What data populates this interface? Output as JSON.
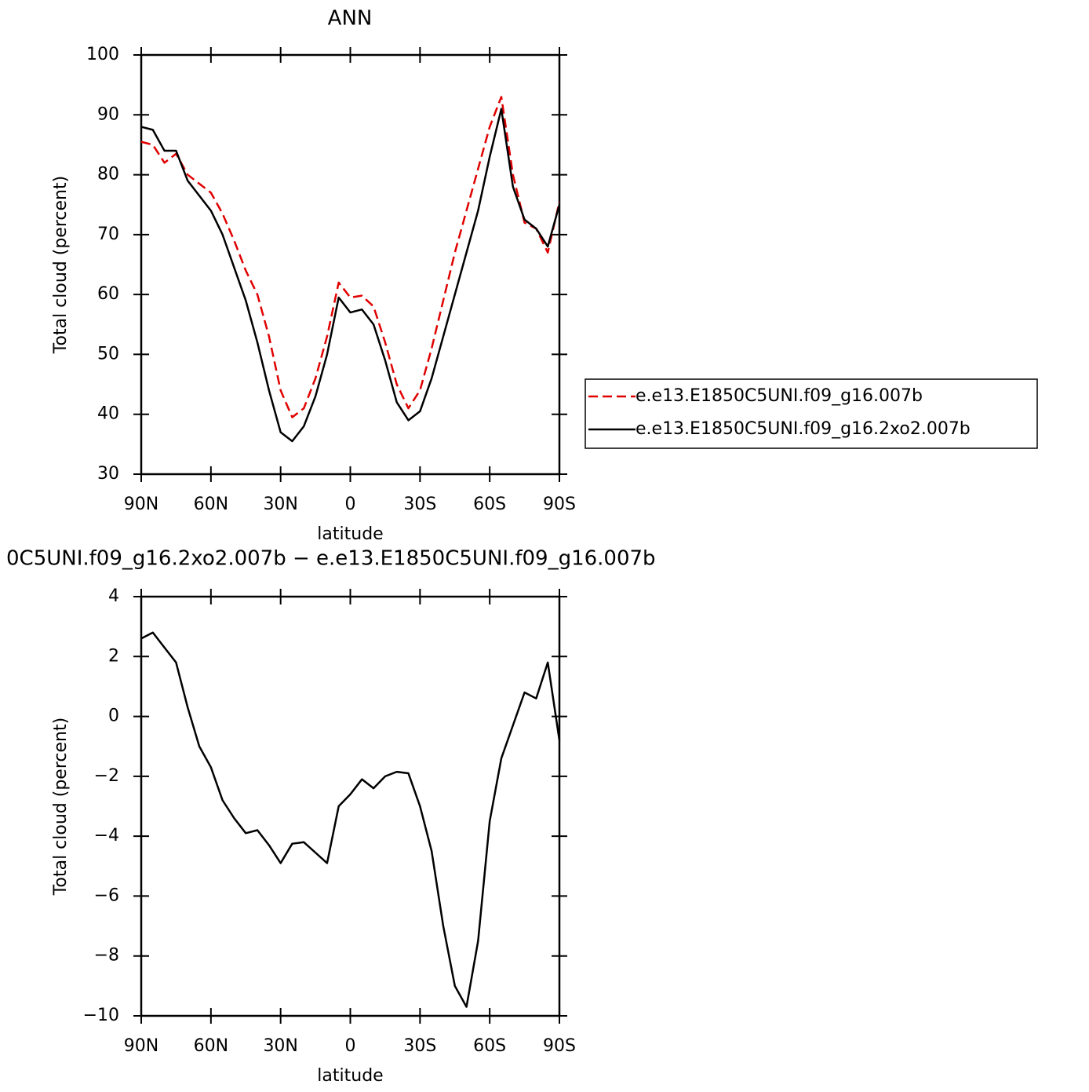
{
  "chart_data": [
    {
      "type": "line",
      "title": "ANN",
      "xlabel": "latitude",
      "ylabel": "Total cloud (percent)",
      "x": [
        90,
        85,
        80,
        75,
        70,
        65,
        60,
        55,
        50,
        45,
        40,
        35,
        30,
        25,
        20,
        15,
        10,
        5,
        0,
        -5,
        -10,
        -15,
        -20,
        -25,
        -30,
        -35,
        -40,
        -45,
        -50,
        -55,
        -60,
        -65,
        -70,
        -75,
        -80,
        -85,
        -90
      ],
      "series": [
        {
          "name": "e.e13.E1850C5UNI.f09_g16.007b",
          "color": "#e00000",
          "dashed": true,
          "values": [
            85.5,
            85,
            82,
            83.5,
            80,
            78.5,
            77,
            73.5,
            69,
            64,
            60,
            53,
            44,
            39.5,
            41,
            46,
            53,
            62,
            59.5,
            59.8,
            58,
            52,
            45,
            41,
            44,
            51,
            59,
            67,
            74,
            81,
            88,
            93,
            80,
            72,
            71,
            67,
            75.5
          ]
        },
        {
          "name": "e.e13.E1850C5UNI.f09_g16.2xo2.007b",
          "color": "#000000",
          "dashed": false,
          "values": [
            88,
            87.5,
            84,
            84,
            79,
            76.5,
            74,
            70,
            64.5,
            59,
            52,
            44,
            37,
            35.5,
            38,
            43,
            50,
            59.5,
            57,
            57.5,
            55,
            49,
            42,
            39,
            40.5,
            46,
            53,
            60,
            67,
            74,
            83,
            91,
            78,
            72.5,
            71,
            68,
            75
          ]
        }
      ],
      "xlim": [
        90,
        -90
      ],
      "xticks": [
        {
          "value": 90,
          "label": "90N"
        },
        {
          "value": 60,
          "label": "60N"
        },
        {
          "value": 30,
          "label": "30N"
        },
        0,
        {
          "value": -30,
          "label": "30S"
        },
        {
          "value": -60,
          "label": "60S"
        },
        {
          "value": -90,
          "label": "90S"
        }
      ],
      "ylim": [
        30,
        100
      ],
      "yticks": [
        30,
        40,
        50,
        60,
        70,
        80,
        90,
        100
      ],
      "legend": "right"
    },
    {
      "type": "line",
      "title": "0C5UNI.f09_g16.2xo2.007b − e.e13.E1850C5UNI.f09_g16.007b",
      "xlabel": "latitude",
      "ylabel": "Total cloud (percent)",
      "x": [
        90,
        85,
        80,
        75,
        70,
        65,
        60,
        55,
        50,
        45,
        40,
        35,
        30,
        25,
        20,
        15,
        10,
        5,
        0,
        -5,
        -10,
        -15,
        -20,
        -25,
        -30,
        -35,
        -40,
        -45,
        -50,
        -55,
        -60,
        -65,
        -70,
        -75,
        -80,
        -85,
        -90
      ],
      "series": [
        {
          "color": "#000000",
          "dashed": false,
          "values": [
            2.6,
            2.8,
            2.3,
            1.8,
            0.3,
            -1.0,
            -1.7,
            -2.8,
            -3.4,
            -3.9,
            -3.8,
            -4.3,
            -4.9,
            -4.25,
            -4.2,
            -4.55,
            -4.9,
            -3.0,
            -2.6,
            -2.1,
            -2.4,
            -2.0,
            -1.85,
            -1.9,
            -3.0,
            -4.5,
            -7.0,
            -9.0,
            -9.7,
            -7.5,
            -3.5,
            -1.4,
            -0.3,
            0.8,
            0.6,
            1.8,
            -0.8
          ]
        }
      ],
      "xlim": [
        90,
        -90
      ],
      "xticks": [
        {
          "value": 90,
          "label": "90N"
        },
        {
          "value": 60,
          "label": "60N"
        },
        {
          "value": 30,
          "label": "30N"
        },
        0,
        {
          "value": -30,
          "label": "30S"
        },
        {
          "value": -60,
          "label": "60S"
        },
        {
          "value": -90,
          "label": "90S"
        }
      ],
      "ylim": [
        -10,
        4
      ],
      "yticks": [
        {
          "value": -10,
          "label": "−10"
        },
        {
          "value": -8,
          "label": "−8"
        },
        {
          "value": -6,
          "label": "−6"
        },
        {
          "value": -4,
          "label": "−4"
        },
        {
          "value": -2,
          "label": "−2"
        },
        0,
        2,
        4
      ]
    }
  ]
}
